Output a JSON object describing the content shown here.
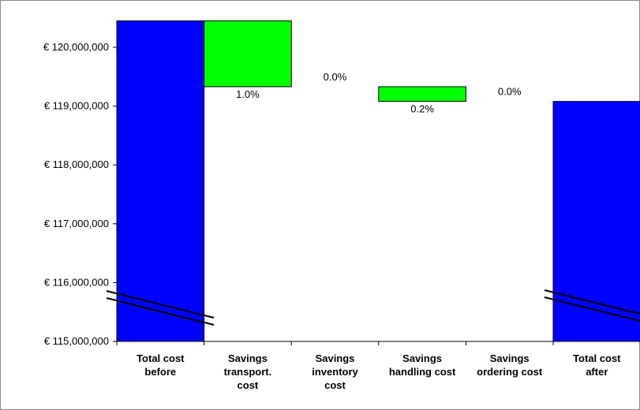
{
  "chart_data": {
    "type": "bar",
    "subtype": "waterfall",
    "categories": [
      [
        "Total cost",
        "before"
      ],
      [
        "Savings",
        "transport.",
        "cost"
      ],
      [
        "Savings",
        "inventory",
        "cost"
      ],
      [
        "Savings",
        "handling cost"
      ],
      [
        "Savings",
        "ordering cost"
      ],
      [
        "Total cost",
        "after"
      ]
    ],
    "bars": [
      {
        "base": 115000000,
        "top": 120450000,
        "label": ""
      },
      {
        "base": 119330000,
        "top": 120450000,
        "label": "1.0%"
      },
      {
        "base": 119330000,
        "top": 119330000,
        "label": "0.0%"
      },
      {
        "base": 119080000,
        "top": 119330000,
        "label": "0.2%"
      },
      {
        "base": 119080000,
        "top": 119080000,
        "label": "0.0%"
      },
      {
        "base": 115000000,
        "top": 119080000,
        "label": ""
      }
    ],
    "yticks": [
      {
        "value": 120000000,
        "label": "€ 120,000,000"
      },
      {
        "value": 119000000,
        "label": "€ 119,000,000"
      },
      {
        "value": 118000000,
        "label": "€ 118,000,000"
      },
      {
        "value": 117000000,
        "label": "€ 117,000,000"
      },
      {
        "value": 116000000,
        "label": "€ 116,000,000"
      },
      {
        "value": 115000000,
        "label": "€ 115,000,000"
      }
    ],
    "ylim": [
      115000000,
      120600000
    ],
    "axis_break": true,
    "grid": false,
    "legend": "none",
    "colors": {
      "total": "#0000ff",
      "savings": "#00ff00",
      "outline": "#000000"
    }
  }
}
